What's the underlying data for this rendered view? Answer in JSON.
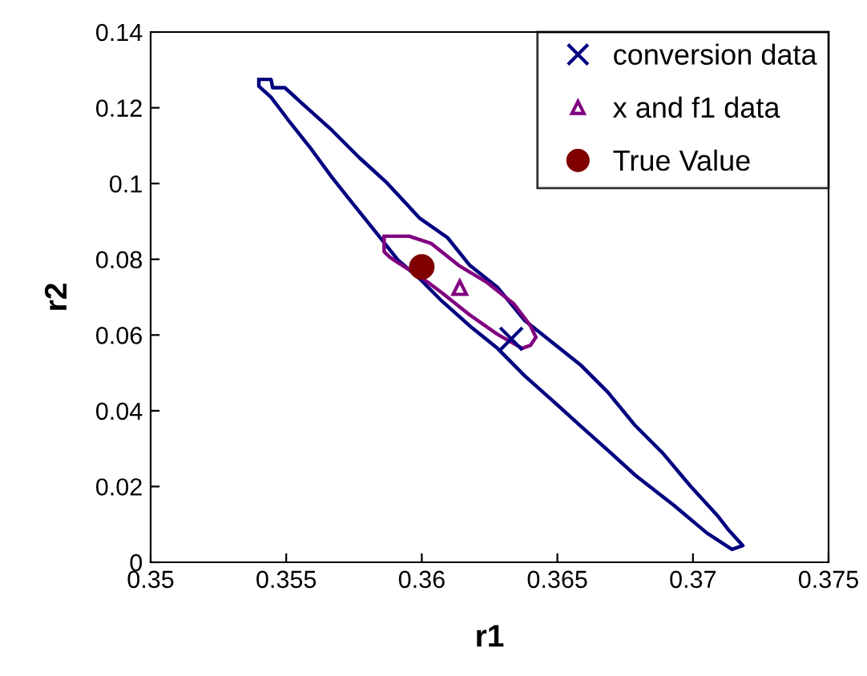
{
  "chart_data": {
    "type": "line",
    "xlabel": "r1",
    "ylabel": "r2",
    "xlim": [
      0.35,
      0.375
    ],
    "ylim": [
      0,
      0.14
    ],
    "xticks": [
      0.35,
      0.355,
      0.36,
      0.365,
      0.37,
      0.375
    ],
    "yticks": [
      0,
      0.02,
      0.04,
      0.06,
      0.08,
      0.1,
      0.12,
      0.14
    ],
    "grid": false,
    "legend": "top right",
    "series": [
      {
        "color": "#000080",
        "marker": "none",
        "x": [
          0.35399,
          0.35444,
          0.3545,
          0.35495,
          0.35556,
          0.35668,
          0.3577,
          0.35871,
          0.35993,
          0.36095,
          0.36177,
          0.36279,
          0.3638,
          0.36482,
          0.36584,
          0.36686,
          0.36787,
          0.36889,
          0.36991,
          0.37093,
          0.37133,
          0.37184,
          0.37144,
          0.37052,
          0.3693,
          0.36787,
          0.36686,
          0.36584,
          0.36482,
          0.3638,
          0.36279,
          0.36177,
          0.36075,
          0.35993,
          0.35912,
          0.35831,
          0.35749,
          0.35668,
          0.35586,
          0.35505,
          0.35444,
          0.35399,
          0.35399
        ],
        "values": [
          0.1275,
          0.1275,
          0.1253,
          0.1253,
          0.1213,
          0.1141,
          0.1068,
          0.1002,
          0.0908,
          0.0857,
          0.0784,
          0.0726,
          0.0638,
          0.058,
          0.0522,
          0.0449,
          0.0361,
          0.0288,
          0.0201,
          0.0121,
          0.0084,
          0.0044,
          0.0034,
          0.0077,
          0.015,
          0.023,
          0.0296,
          0.0361,
          0.0427,
          0.0492,
          0.0565,
          0.0624,
          0.0689,
          0.0748,
          0.0798,
          0.0871,
          0.0944,
          0.1017,
          0.1097,
          0.117,
          0.1228,
          0.1257,
          0.1272
        ]
      },
      {
        "color": "#800080",
        "marker": "none",
        "x": [
          0.35861,
          0.35881,
          0.35953,
          0.36034,
          0.36136,
          0.36238,
          0.3634,
          0.36401,
          0.36421,
          0.36401,
          0.3637,
          0.36279,
          0.36177,
          0.36075,
          0.35993,
          0.35912,
          0.35881,
          0.35861,
          0.35861
        ],
        "values": [
          0.0861,
          0.0861,
          0.0861,
          0.0842,
          0.0784,
          0.074,
          0.0682,
          0.0624,
          0.0594,
          0.0573,
          0.0565,
          0.0602,
          0.0653,
          0.0711,
          0.0755,
          0.0791,
          0.0806,
          0.082,
          0.0858
        ]
      },
      {
        "name": "conversion data",
        "type": "scatter",
        "color": "#000080",
        "marker": "cross",
        "x": [
          0.3633
        ],
        "values": [
          0.059
        ]
      },
      {
        "name": "x and f1 data",
        "type": "scatter",
        "color": "#800080",
        "marker": "triangle",
        "x": [
          0.3614
        ],
        "values": [
          0.0725
        ]
      },
      {
        "name": "True Value",
        "type": "scatter",
        "color": "#800000",
        "marker": "circle",
        "x": [
          0.36
        ],
        "values": [
          0.078
        ]
      }
    ]
  }
}
